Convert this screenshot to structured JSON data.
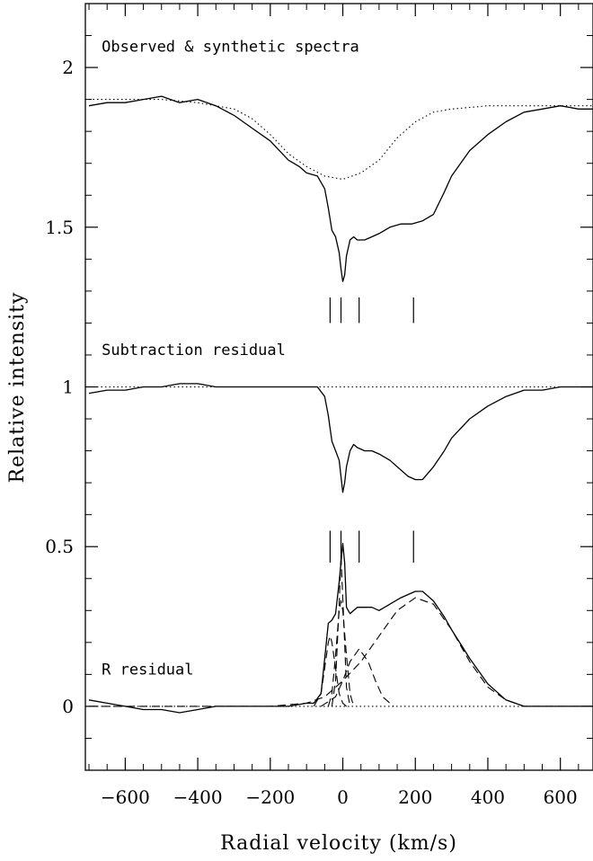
{
  "chart_data": {
    "type": "line",
    "xlabel": "Radial velocity (km/s)",
    "ylabel": "Relative intensity",
    "xlim": [
      -710,
      690
    ],
    "ylim": [
      -0.2,
      2.2
    ],
    "x_ticks": [
      -600,
      -400,
      -200,
      0,
      200,
      400,
      600
    ],
    "x_tick_labels": [
      "−600",
      "−400",
      "−200",
      "0",
      "200",
      "400",
      "600"
    ],
    "y_ticks": [
      0,
      0.5,
      1,
      1.5,
      2
    ],
    "y_tick_labels": [
      "0",
      "0.5",
      "1",
      "1.5",
      "2"
    ],
    "grid": false,
    "annotations": [
      {
        "text": "Observed & synthetic spectra",
        "x": -665,
        "y": 2.05
      },
      {
        "text": "Subtraction residual",
        "x": -665,
        "y": 1.1
      },
      {
        "text": "R residual",
        "x": -665,
        "y": 0.1
      }
    ],
    "component_markers": {
      "x": [
        -35,
        -5,
        45,
        195
      ],
      "y_ranges": [
        [
          1.2,
          1.28
        ],
        [
          0.45,
          0.55
        ]
      ]
    },
    "series": [
      {
        "style": "solid",
        "x": [
          -700,
          -650,
          -600,
          -550,
          -500,
          -450,
          -400,
          -350,
          -300,
          -250,
          -200,
          -150,
          -120,
          -100,
          -70,
          -50,
          -40,
          -30,
          -20,
          -10,
          -5,
          0,
          5,
          10,
          20,
          30,
          40,
          60,
          80,
          100,
          130,
          160,
          190,
          220,
          250,
          280,
          300,
          350,
          400,
          450,
          500,
          550,
          600,
          650,
          690
        ],
        "y": [
          1.88,
          1.89,
          1.89,
          1.9,
          1.91,
          1.89,
          1.9,
          1.88,
          1.85,
          1.81,
          1.77,
          1.71,
          1.69,
          1.67,
          1.66,
          1.62,
          1.56,
          1.49,
          1.47,
          1.42,
          1.37,
          1.33,
          1.35,
          1.41,
          1.46,
          1.47,
          1.46,
          1.46,
          1.47,
          1.48,
          1.5,
          1.51,
          1.51,
          1.52,
          1.54,
          1.61,
          1.66,
          1.74,
          1.79,
          1.83,
          1.86,
          1.87,
          1.88,
          1.87,
          1.87
        ]
      },
      {
        "style": "dotted",
        "x": [
          -700,
          -600,
          -500,
          -400,
          -300,
          -250,
          -200,
          -150,
          -100,
          -50,
          0,
          50,
          100,
          150,
          200,
          250,
          300,
          400,
          500,
          600,
          690
        ],
        "y": [
          1.9,
          1.9,
          1.9,
          1.89,
          1.87,
          1.84,
          1.79,
          1.73,
          1.69,
          1.66,
          1.65,
          1.67,
          1.71,
          1.78,
          1.83,
          1.86,
          1.87,
          1.88,
          1.88,
          1.88,
          1.88
        ]
      },
      {
        "style": "solid",
        "x": [
          -700,
          -650,
          -600,
          -550,
          -500,
          -450,
          -400,
          -350,
          -300,
          -250,
          -200,
          -150,
          -100,
          -70,
          -50,
          -40,
          -30,
          -20,
          -10,
          -5,
          0,
          5,
          10,
          20,
          30,
          40,
          60,
          80,
          100,
          130,
          160,
          180,
          200,
          220,
          250,
          280,
          300,
          350,
          400,
          450,
          500,
          550,
          600,
          650,
          690
        ],
        "y": [
          0.98,
          0.99,
          0.99,
          1.0,
          1.0,
          1.01,
          1.01,
          1.0,
          1.0,
          1.0,
          1.0,
          1.0,
          1.0,
          1.0,
          0.97,
          0.91,
          0.83,
          0.8,
          0.77,
          0.72,
          0.67,
          0.7,
          0.75,
          0.8,
          0.82,
          0.81,
          0.8,
          0.8,
          0.79,
          0.77,
          0.74,
          0.72,
          0.71,
          0.71,
          0.75,
          0.8,
          0.84,
          0.9,
          0.94,
          0.97,
          0.99,
          0.99,
          1.0,
          1.0,
          1.0
        ]
      },
      {
        "style": "dotted",
        "x": [
          -700,
          690
        ],
        "y": [
          1.0,
          1.0
        ]
      },
      {
        "style": "solid",
        "x": [
          -700,
          -650,
          -600,
          -550,
          -500,
          -450,
          -400,
          -350,
          -300,
          -250,
          -200,
          -150,
          -100,
          -80,
          -60,
          -50,
          -40,
          -30,
          -20,
          -10,
          -5,
          0,
          5,
          10,
          20,
          30,
          40,
          60,
          80,
          100,
          130,
          160,
          180,
          200,
          220,
          250,
          280,
          300,
          350,
          400,
          450,
          500,
          550,
          600,
          650,
          690
        ],
        "y": [
          0.02,
          0.01,
          0.0,
          -0.01,
          -0.01,
          -0.02,
          -0.01,
          0.0,
          0.0,
          0.0,
          0.0,
          0.0,
          0.01,
          0.01,
          0.04,
          0.15,
          0.26,
          0.27,
          0.29,
          0.39,
          0.45,
          0.51,
          0.45,
          0.31,
          0.29,
          0.3,
          0.31,
          0.31,
          0.31,
          0.3,
          0.32,
          0.34,
          0.35,
          0.36,
          0.36,
          0.33,
          0.28,
          0.24,
          0.15,
          0.07,
          0.02,
          0.0,
          0.0,
          0.0,
          0.0,
          0.0
        ]
      },
      {
        "style": "dotted",
        "x": [
          -700,
          690
        ],
        "y": [
          0.0,
          0.0
        ]
      },
      {
        "style": "dashed",
        "x": [
          -700,
          -400,
          -200,
          -100,
          -50,
          0,
          50,
          100,
          150,
          200,
          250,
          300,
          350,
          400,
          450,
          500,
          690
        ],
        "y": [
          0.0,
          0.0,
          0.0,
          0.01,
          0.03,
          0.08,
          0.14,
          0.22,
          0.3,
          0.34,
          0.32,
          0.24,
          0.14,
          0.06,
          0.02,
          0.0,
          0.0
        ]
      },
      {
        "style": "dashed",
        "x": [
          -80,
          -60,
          -50,
          -40,
          -35,
          -30,
          -20,
          -10,
          0,
          10,
          20
        ],
        "y": [
          0.0,
          0.04,
          0.12,
          0.2,
          0.22,
          0.2,
          0.12,
          0.04,
          0.01,
          0.0,
          0.0
        ]
      },
      {
        "style": "dashed",
        "x": [
          -40,
          -30,
          -20,
          -10,
          -5,
          0,
          10,
          20,
          30
        ],
        "y": [
          0.0,
          0.04,
          0.16,
          0.3,
          0.33,
          0.3,
          0.16,
          0.04,
          0.0
        ]
      },
      {
        "style": "dashed",
        "x": [
          -60,
          -20,
          0,
          20,
          45,
          70,
          90,
          110,
          140
        ],
        "y": [
          0.0,
          0.03,
          0.08,
          0.14,
          0.18,
          0.14,
          0.08,
          0.03,
          0.0
        ]
      },
      {
        "style": "dashed",
        "x": [
          -30,
          -20,
          -10,
          -5,
          0,
          10,
          20
        ],
        "y": [
          0.0,
          0.08,
          0.32,
          0.47,
          0.34,
          0.06,
          0.0
        ]
      }
    ]
  }
}
